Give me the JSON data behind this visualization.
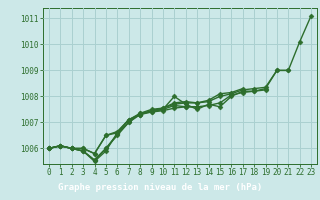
{
  "title": "Graphe pression niveau de la mer (hPa)",
  "bg_color": "#cce8e8",
  "grid_color": "#aad0d0",
  "line_color": "#2d6e2d",
  "label_bg": "#2d6e2d",
  "label_fg": "#ffffff",
  "xlim": [
    -0.5,
    23.5
  ],
  "ylim": [
    1005.4,
    1011.4
  ],
  "yticks": [
    1006,
    1007,
    1008,
    1009,
    1010,
    1011
  ],
  "xticks": [
    0,
    1,
    2,
    3,
    4,
    5,
    6,
    7,
    8,
    9,
    10,
    11,
    12,
    13,
    14,
    15,
    16,
    17,
    18,
    19,
    20,
    21,
    22,
    23
  ],
  "series": [
    [
      1006.0,
      1006.1,
      1006.0,
      1005.9,
      1005.5,
      1005.9,
      1006.6,
      1007.1,
      1007.3,
      1007.45,
      1007.5,
      1008.0,
      1007.7,
      1007.5,
      1007.7,
      1007.6,
      1008.0,
      1008.2,
      1008.2,
      1008.3,
      1009.0,
      1009.0,
      1010.1,
      1011.1
    ],
    [
      1006.0,
      1006.1,
      1006.0,
      1006.0,
      1005.8,
      1006.5,
      1006.6,
      1007.1,
      1007.35,
      1007.5,
      1007.55,
      1007.7,
      1007.75,
      1007.75,
      1007.8,
      1008.0,
      1008.1,
      1008.25,
      1008.3,
      1008.35,
      1009.0,
      1009.0,
      null,
      null
    ],
    [
      1006.0,
      1006.1,
      1006.0,
      1005.9,
      1005.55,
      1006.0,
      1006.55,
      1007.0,
      1007.35,
      1007.4,
      1007.5,
      1007.65,
      1007.6,
      1007.6,
      1007.65,
      1007.75,
      1008.05,
      1008.15,
      1008.2,
      1008.25,
      null,
      null,
      null,
      null
    ],
    [
      1006.0,
      1006.1,
      1006.0,
      1006.0,
      1005.8,
      1006.5,
      1006.65,
      1007.1,
      1007.3,
      1007.45,
      1007.55,
      1007.75,
      1007.8,
      1007.75,
      1007.85,
      1008.1,
      1008.15,
      1008.3,
      null,
      null,
      null,
      null,
      null,
      null
    ],
    [
      1006.0,
      1006.1,
      1006.0,
      1005.9,
      1005.55,
      1006.0,
      1006.5,
      1007.0,
      1007.3,
      1007.4,
      1007.45,
      1007.55,
      1007.6,
      1007.6,
      null,
      null,
      null,
      null,
      null,
      null,
      null,
      null,
      null,
      null
    ]
  ],
  "marker": "D",
  "marker_size": 2.5,
  "linewidth": 1.0,
  "tick_fontsize": 5.5,
  "title_fontsize": 6.5
}
